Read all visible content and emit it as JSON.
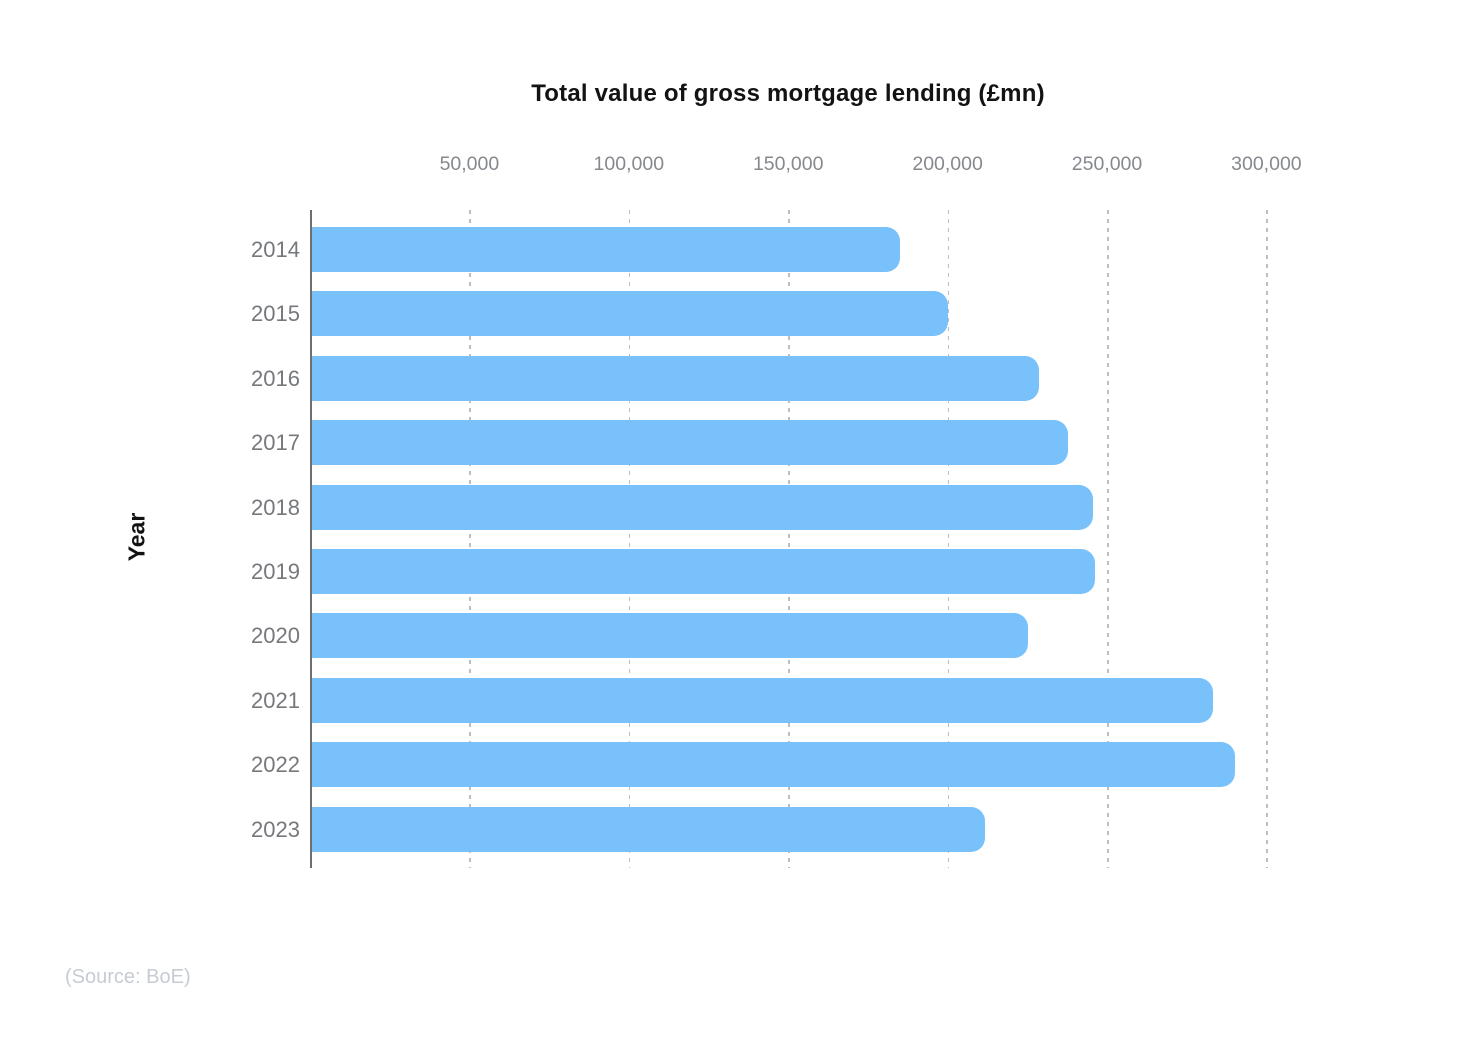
{
  "chart_data": {
    "type": "bar",
    "orientation": "horizontal",
    "title": "Total value of gross mortgage lending (£mn)",
    "xlabel": "",
    "ylabel": "Year",
    "categories": [
      "2014",
      "2015",
      "2016",
      "2017",
      "2018",
      "2019",
      "2020",
      "2021",
      "2022",
      "2023"
    ],
    "values": [
      184500,
      199500,
      228000,
      237000,
      245000,
      245500,
      224500,
      282500,
      289500,
      211000
    ],
    "x_ticks": [
      50000,
      100000,
      150000,
      200000,
      250000,
      300000
    ],
    "x_tick_labels": [
      "50,000",
      "100,000",
      "150,000",
      "200,000",
      "250,000",
      "300,000"
    ],
    "xlim": [
      0,
      353000
    ],
    "grid": "vertical-dashed",
    "legend": "none",
    "bar_color": "#78C1FA",
    "source": "(Source: BoE)"
  },
  "colors": {
    "background": "#FFFFFF",
    "bar": "#78C1FA",
    "gridline": "#B8BFC7",
    "axis_line": "#6E6E6E",
    "title_text": "#131313",
    "tick_label_text": "#85898E",
    "category_label_text": "#75787C",
    "source_text": "#C7CCD4"
  }
}
